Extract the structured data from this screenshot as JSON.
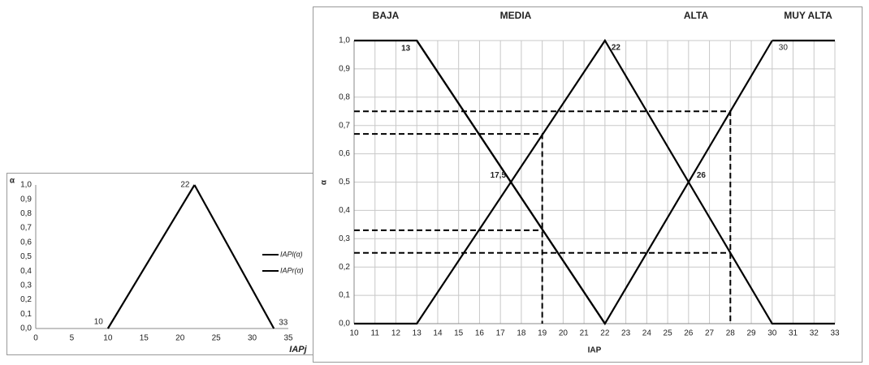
{
  "chart_data": [
    {
      "type": "line",
      "x_label": "IAPj",
      "y_label": "α",
      "xlim": [
        0,
        35
      ],
      "xticks": [
        0,
        5,
        10,
        15,
        20,
        25,
        30,
        35
      ],
      "ylim": [
        0,
        1
      ],
      "yticks": [
        {
          "value": 0,
          "label": "0,0"
        },
        {
          "value": 0.1,
          "label": "0,1"
        },
        {
          "value": 0.2,
          "label": "0,2"
        },
        {
          "value": 0.3,
          "label": "0,3"
        },
        {
          "value": 0.4,
          "label": "0,4"
        },
        {
          "value": 0.5,
          "label": "0,5"
        },
        {
          "value": 0.6,
          "label": "0,6"
        },
        {
          "value": 0.7,
          "label": "0,7"
        },
        {
          "value": 0.8,
          "label": "0,8"
        },
        {
          "value": 0.9,
          "label": "0,9"
        },
        {
          "value": 1,
          "label": "1,0"
        }
      ],
      "grid": false,
      "legend": "right",
      "series": [
        {
          "name": "IAPl(α)",
          "color": "#000000",
          "x": [
            10,
            22
          ],
          "values": [
            0,
            1
          ]
        },
        {
          "name": "IAPr(α)",
          "color": "#000000",
          "x": [
            22,
            33
          ],
          "values": [
            1,
            0
          ]
        }
      ],
      "annotations": [
        {
          "text": "10",
          "x": 10,
          "y": 0
        },
        {
          "text": "22",
          "x": 22,
          "y": 1
        },
        {
          "text": "33",
          "x": 33,
          "y": 0
        }
      ]
    },
    {
      "type": "line",
      "x_label": "IAP",
      "y_label": "α",
      "xlim": [
        10,
        33
      ],
      "xticks": [
        10,
        11,
        12,
        13,
        14,
        15,
        16,
        17,
        18,
        19,
        20,
        21,
        22,
        23,
        24,
        25,
        26,
        27,
        28,
        29,
        30,
        31,
        32,
        33
      ],
      "ylim": [
        0,
        1
      ],
      "yticks": [
        {
          "value": 0,
          "label": "0,0"
        },
        {
          "value": 0.1,
          "label": "0,1"
        },
        {
          "value": 0.2,
          "label": "0,2"
        },
        {
          "value": 0.3,
          "label": "0,3"
        },
        {
          "value": 0.4,
          "label": "0,4"
        },
        {
          "value": 0.5,
          "label": "0,5"
        },
        {
          "value": 0.6,
          "label": "0,6"
        },
        {
          "value": 0.7,
          "label": "0,7"
        },
        {
          "value": 0.8,
          "label": "0,8"
        },
        {
          "value": 0.9,
          "label": "0,9"
        },
        {
          "value": 1,
          "label": "1,0"
        }
      ],
      "grid": true,
      "series": [
        {
          "name": "BAJA",
          "color": "#000000",
          "x": [
            10,
            13,
            22
          ],
          "values": [
            1,
            1,
            0
          ]
        },
        {
          "name": "MEDIA",
          "color": "#000000",
          "x": [
            10,
            13,
            22,
            30,
            33
          ],
          "values": [
            0,
            0,
            1,
            0,
            0
          ]
        },
        {
          "name": "ALTA",
          "color": "#000000",
          "x": [
            13,
            22,
            30
          ],
          "values": [
            1,
            0,
            1
          ]
        },
        {
          "name": "MUY ALTA",
          "color": "#000000",
          "x": [
            30,
            33
          ],
          "values": [
            1,
            1
          ]
        }
      ],
      "guides": [
        {
          "x": [
            10,
            28,
            28
          ],
          "values": [
            0.75,
            0.75,
            0
          ]
        },
        {
          "x": [
            10,
            19,
            19
          ],
          "values": [
            0.67,
            0.67,
            0
          ]
        },
        {
          "x": [
            10,
            19
          ],
          "values": [
            0.33,
            0.33
          ]
        },
        {
          "x": [
            10,
            28
          ],
          "values": [
            0.25,
            0.25
          ]
        }
      ],
      "annotations": [
        {
          "text": "13",
          "x": 13,
          "y": 1
        },
        {
          "text": "22",
          "x": 22,
          "y": 1
        },
        {
          "text": "30",
          "x": 30,
          "y": 1
        },
        {
          "text": "17,5",
          "x": 17.5,
          "y": 0.5
        },
        {
          "text": "26",
          "x": 26,
          "y": 0.5
        }
      ]
    }
  ]
}
